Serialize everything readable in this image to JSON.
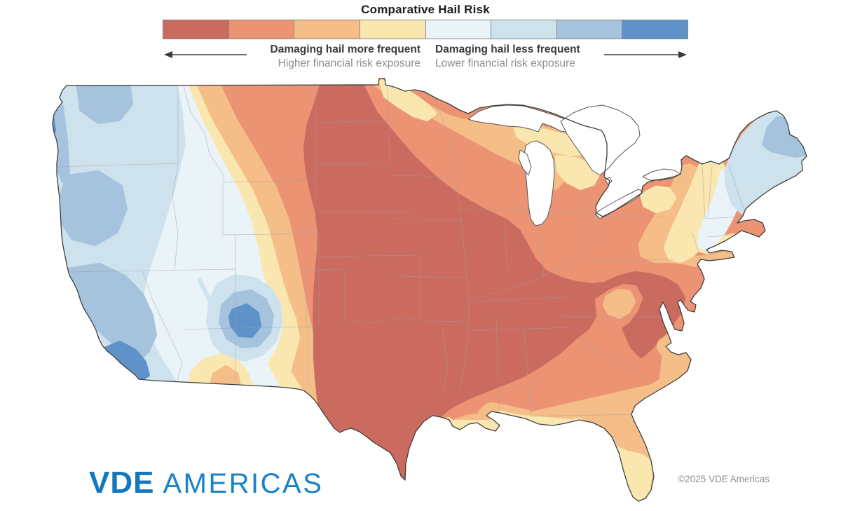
{
  "title": "Comparative Hail Risk",
  "legend": {
    "colors": [
      "#CB6A5F",
      "#EC9374",
      "#F5BE88",
      "#FAE7B0",
      "#EAF3F8",
      "#CEE2EE",
      "#A5C3DD",
      "#5E92C9"
    ],
    "border_color": "#858585",
    "more": {
      "label": "Damaging hail more frequent",
      "sub": "Higher financial risk exposure"
    },
    "less": {
      "label": "Damaging hail less frequent",
      "sub": "Lower financial risk exposure"
    },
    "arrow_color": "#3a3a3a"
  },
  "map": {
    "outline_color": "#3F3F3F",
    "state_line_color": "#97A0A8",
    "lake_fill": "#FFFFFF"
  },
  "branding": {
    "logo_primary": "VDE",
    "logo_secondary": "AMERICAS",
    "logo_primary_color": "#1478BE",
    "logo_secondary_color": "#1A82C6",
    "copyright": "©2025 VDE Americas",
    "copyright_color": "#8E8E8E"
  }
}
